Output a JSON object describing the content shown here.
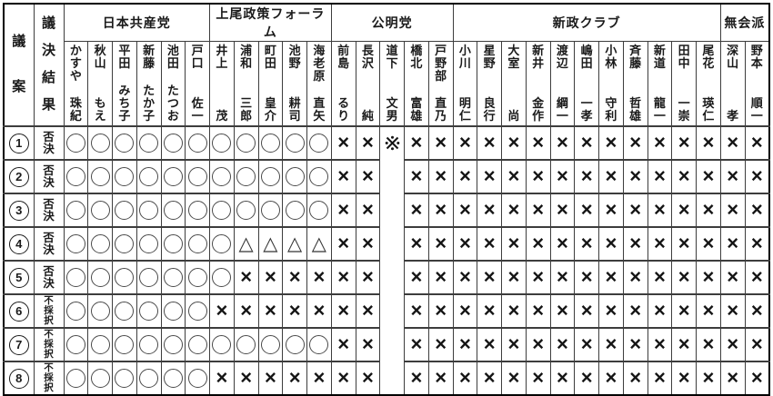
{
  "table": {
    "corner_headers": {
      "bill": "議案",
      "result": "議決結果"
    },
    "groups": [
      {
        "name": "日本共産党",
        "members": [
          {
            "sei": "かすや",
            "mei": "珠紀"
          },
          {
            "sei": "秋山",
            "mei": "もえ"
          },
          {
            "sei": "平田",
            "mei": "みち子"
          },
          {
            "sei": "新藤",
            "mei": "たか子"
          },
          {
            "sei": "池田",
            "mei": "たつお"
          },
          {
            "sei": "戸口",
            "mei": "佐一"
          }
        ]
      },
      {
        "name": "上尾政策フォーラム",
        "members": [
          {
            "sei": "井上",
            "mei": "茂"
          },
          {
            "sei": "浦和",
            "mei": "三郎"
          },
          {
            "sei": "町田",
            "mei": "皇介"
          },
          {
            "sei": "池野",
            "mei": "耕司"
          },
          {
            "sei": "海老原",
            "mei": "直矢"
          }
        ]
      },
      {
        "name": "公明党",
        "members": [
          {
            "sei": "前島",
            "mei": "るり"
          },
          {
            "sei": "長沢",
            "mei": "純"
          },
          {
            "sei": "道下",
            "mei": "文男"
          },
          {
            "sei": "橋北",
            "mei": "富雄"
          },
          {
            "sei": "戸野部",
            "mei": "直乃"
          }
        ]
      },
      {
        "name": "新政クラブ",
        "members": [
          {
            "sei": "小川",
            "mei": "明仁"
          },
          {
            "sei": "星野",
            "mei": "良行"
          },
          {
            "sei": "大室",
            "mei": "尚"
          },
          {
            "sei": "新井",
            "mei": "金作"
          },
          {
            "sei": "渡辺",
            "mei": "綱一"
          },
          {
            "sei": "嶋田",
            "mei": "一孝"
          },
          {
            "sei": "小林",
            "mei": "守利"
          },
          {
            "sei": "斉藤",
            "mei": "哲雄"
          },
          {
            "sei": "新道",
            "mei": "龍一"
          },
          {
            "sei": "田中",
            "mei": "一崇"
          },
          {
            "sei": "尾花",
            "mei": "瑛仁"
          }
        ]
      },
      {
        "name": "無会派",
        "members": [
          {
            "sei": "深山",
            "mei": "孝"
          },
          {
            "sei": "野本",
            "mei": "順一"
          }
        ]
      }
    ],
    "merged_column": {
      "member": "道下文男",
      "member_index": 13,
      "symbol": "※",
      "spans_all_rows": true
    },
    "rows": [
      {
        "no": "①",
        "result": "否決",
        "votes": [
          "○",
          "○",
          "○",
          "○",
          "○",
          "○",
          "○",
          "○",
          "○",
          "○",
          "○",
          "×",
          "×",
          "※",
          "×",
          "×",
          "×",
          "×",
          "×",
          "×",
          "×",
          "×",
          "×",
          "×",
          "×",
          "×",
          "×",
          "×",
          "×"
        ]
      },
      {
        "no": "②",
        "result": "否決",
        "votes": [
          "○",
          "○",
          "○",
          "○",
          "○",
          "○",
          "○",
          "○",
          "○",
          "○",
          "○",
          "×",
          "×",
          "",
          "×",
          "×",
          "×",
          "×",
          "×",
          "×",
          "×",
          "×",
          "×",
          "×",
          "×",
          "×",
          "×",
          "×",
          "×"
        ]
      },
      {
        "no": "③",
        "result": "否決",
        "votes": [
          "○",
          "○",
          "○",
          "○",
          "○",
          "○",
          "○",
          "○",
          "○",
          "○",
          "○",
          "×",
          "×",
          "",
          "×",
          "×",
          "×",
          "×",
          "×",
          "×",
          "×",
          "×",
          "×",
          "×",
          "×",
          "×",
          "×",
          "×",
          "×"
        ]
      },
      {
        "no": "④",
        "result": "否決",
        "votes": [
          "○",
          "○",
          "○",
          "○",
          "○",
          "○",
          "○",
          "△",
          "△",
          "△",
          "△",
          "×",
          "×",
          "",
          "×",
          "×",
          "×",
          "×",
          "×",
          "×",
          "×",
          "×",
          "×",
          "×",
          "×",
          "×",
          "×",
          "×",
          "×"
        ]
      },
      {
        "no": "⑤",
        "result": "否決",
        "votes": [
          "○",
          "○",
          "○",
          "○",
          "○",
          "○",
          "○",
          "×",
          "×",
          "×",
          "×",
          "×",
          "×",
          "",
          "×",
          "×",
          "×",
          "×",
          "×",
          "×",
          "×",
          "×",
          "×",
          "×",
          "×",
          "×",
          "×",
          "×",
          "×"
        ]
      },
      {
        "no": "⑥",
        "result": "不採択",
        "votes": [
          "○",
          "○",
          "○",
          "○",
          "○",
          "○",
          "×",
          "×",
          "×",
          "×",
          "×",
          "×",
          "×",
          "",
          "×",
          "×",
          "×",
          "×",
          "×",
          "×",
          "×",
          "×",
          "×",
          "×",
          "×",
          "×",
          "×",
          "×",
          "×"
        ]
      },
      {
        "no": "⑦",
        "result": "不採択",
        "votes": [
          "○",
          "○",
          "○",
          "○",
          "○",
          "○",
          "○",
          "○",
          "○",
          "○",
          "○",
          "×",
          "×",
          "",
          "×",
          "×",
          "×",
          "×",
          "×",
          "×",
          "×",
          "×",
          "×",
          "×",
          "×",
          "×",
          "×",
          "×",
          "×"
        ]
      },
      {
        "no": "⑧",
        "result": "不採択",
        "votes": [
          "○",
          "○",
          "○",
          "○",
          "○",
          "○",
          "×",
          "×",
          "×",
          "×",
          "×",
          "×",
          "×",
          "",
          "×",
          "×",
          "×",
          "×",
          "×",
          "×",
          "×",
          "×",
          "×",
          "×",
          "×",
          "×",
          "×",
          "×",
          "×"
        ]
      }
    ],
    "colors": {
      "ink": "#1a1a1a",
      "grid": "#3d3d3d",
      "background": "#ffffff"
    }
  }
}
